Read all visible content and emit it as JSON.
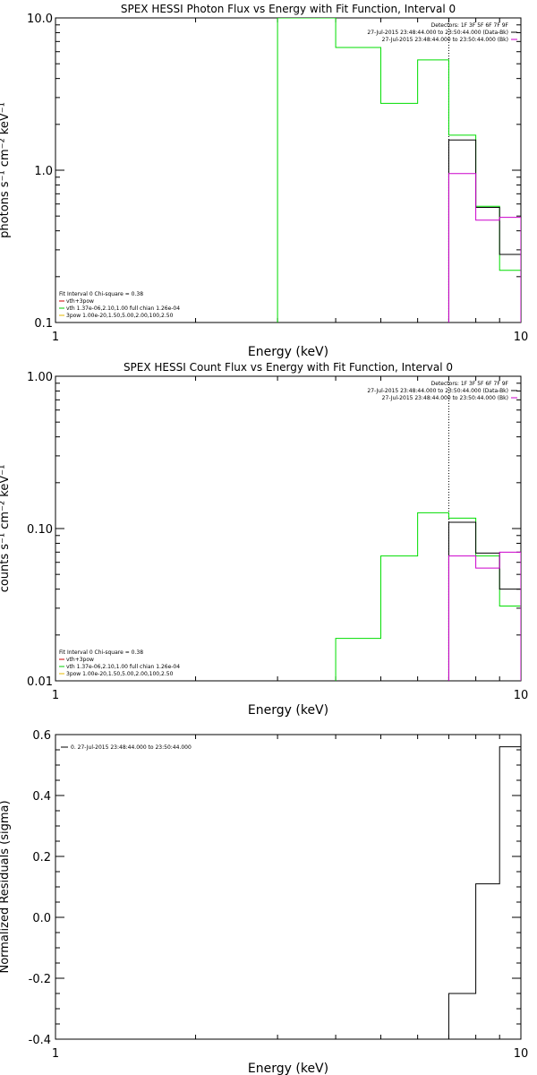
{
  "chart_data": [
    {
      "type": "line",
      "title": "SPEX HESSI Photon Flux vs Energy with Fit Function, Interval 0",
      "xlabel": "Energy (keV)",
      "ylabel": "photons s⁻¹ cm⁻² keV⁻¹",
      "xscale": "log",
      "yscale": "log",
      "xlim": [
        1,
        10
      ],
      "ylim": [
        0.1,
        10
      ],
      "xtick_labels": [
        "1",
        "10"
      ],
      "ytick_labels": [
        "0.1",
        "1.0",
        "10.0"
      ],
      "legend_top": [
        {
          "text": "Detectors: 1F 3F 5F 6F 7F 9F",
          "color": ""
        },
        {
          "text": "27-Jul-2015 23:48:44.000 to 23:50:44.000 (Data-Bk)",
          "color": "#000000"
        },
        {
          "text": "27-Jul-2015 23:48:44.000 to 23:50:44.000 (Bk)",
          "color": "#cc00cc"
        }
      ],
      "legend_bottom": [
        {
          "text": "Fit Interval 0   Chi-square = 0.38",
          "color": ""
        },
        {
          "text": "vth+3pow",
          "color": "#cc0000"
        },
        {
          "text": "vth 1.37e-06,2.10,1.00  full chian 1.26e-04",
          "color": "#00cc00"
        },
        {
          "text": "3pow 1.00e-20,1.50,5.00,2.00,100,2.50",
          "color": "#e6b800"
        }
      ],
      "vline_x": 7.0,
      "series": [
        {
          "color": "#00dd00",
          "edges": [
            3.0,
            4.0,
            5.0,
            6.0,
            7.0,
            8.0,
            9.0,
            10.0
          ],
          "values": [
            10.5,
            6.4,
            2.75,
            5.3,
            1.7,
            0.58,
            0.22
          ],
          "drop_left": true
        },
        {
          "color": "#000000",
          "edges": [
            7.0,
            8.0,
            9.0,
            10.0
          ],
          "values": [
            1.58,
            0.57,
            0.28
          ],
          "drop_left": true
        },
        {
          "color": "#cc00cc",
          "edges": [
            7.0,
            8.0,
            9.0,
            10.0
          ],
          "values": [
            0.95,
            0.47,
            0.49
          ],
          "drop_left": true,
          "dashed_right": true
        }
      ]
    },
    {
      "type": "line",
      "title": "SPEX HESSI Count Flux vs Energy with Fit Function, Interval 0",
      "xlabel": "Energy (keV)",
      "ylabel": "counts s⁻¹ cm⁻² keV⁻¹",
      "xscale": "log",
      "yscale": "log",
      "xlim": [
        1,
        10
      ],
      "ylim": [
        0.01,
        1
      ],
      "xtick_labels": [
        "1",
        "10"
      ],
      "ytick_labels": [
        "0.01",
        "0.10",
        "1.00"
      ],
      "legend_top": [
        {
          "text": "Detectors: 1F 3F 5F 6F 7F 9F",
          "color": ""
        },
        {
          "text": "27-Jul-2015 23:48:44.000 to 23:50:44.000 (Data-Bk)",
          "color": "#000000"
        },
        {
          "text": "27-Jul-2015 23:48:44.000 to 23:50:44.000 (Bk)",
          "color": "#cc00cc"
        }
      ],
      "legend_bottom": [
        {
          "text": "Fit Interval 0   Chi-square = 0.38",
          "color": ""
        },
        {
          "text": "vth+3pow",
          "color": "#cc0000"
        },
        {
          "text": "vth 1.37e-06,2.10,1.00  full chian 1.26e-04",
          "color": "#00cc00"
        },
        {
          "text": "3pow 1.00e-20,1.50,5.00,2.00,100,2.50",
          "color": "#e6b800"
        }
      ],
      "vline_x": 7.0,
      "series": [
        {
          "color": "#00dd00",
          "edges": [
            4.0,
            5.0,
            6.0,
            7.0,
            8.0,
            9.0,
            10.0
          ],
          "values": [
            0.019,
            0.066,
            0.127,
            0.117,
            0.066,
            0.031
          ],
          "drop_left": true
        },
        {
          "color": "#000000",
          "edges": [
            7.0,
            8.0,
            9.0,
            10.0
          ],
          "values": [
            0.11,
            0.069,
            0.04
          ],
          "drop_left": true
        },
        {
          "color": "#cc00cc",
          "edges": [
            7.0,
            8.0,
            9.0,
            10.0
          ],
          "values": [
            0.066,
            0.055,
            0.07
          ],
          "drop_left": true,
          "dashed_right": true
        }
      ]
    },
    {
      "type": "line",
      "title": "",
      "xlabel": "Energy (keV)",
      "ylabel": "Normalized Residuals (sigma)",
      "xscale": "log",
      "yscale": "linear",
      "xlim": [
        1,
        10
      ],
      "ylim": [
        -0.4,
        0.6
      ],
      "xtick_labels": [
        "1",
        "10"
      ],
      "ytick_values": [
        -0.4,
        -0.2,
        0.0,
        0.2,
        0.4,
        0.6
      ],
      "ytick_labels": [
        "-0.4",
        "-0.2",
        "0.0",
        "0.2",
        "0.4",
        "0.6"
      ],
      "legend_top": [],
      "legend_left": [
        {
          "text": "0. 27-Jul-2015 23:48:44.000 to 23:50:44.000",
          "color": "#000000"
        }
      ],
      "legend_bottom": [],
      "series": [
        {
          "color": "#000000",
          "edges": [
            7.0,
            8.0,
            9.0,
            10.0
          ],
          "values": [
            -0.25,
            0.11,
            0.56
          ],
          "drop_left": true
        }
      ]
    }
  ]
}
